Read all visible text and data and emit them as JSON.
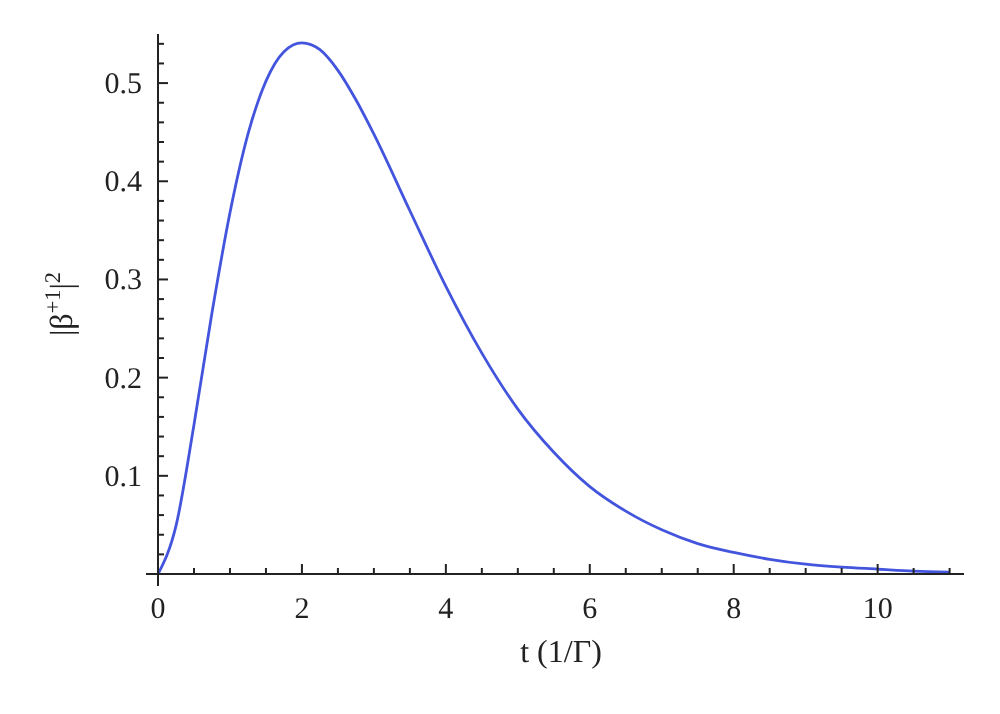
{
  "chart_data": {
    "type": "line",
    "xlabel": "t (1/Γ)",
    "ylabel": "|β$^{+1}$|$^{2}$",
    "x": [
      0,
      0.25,
      0.5,
      0.75,
      1,
      1.25,
      1.5,
      1.75,
      2,
      2.25,
      2.5,
      2.75,
      3,
      3.5,
      4,
      4.5,
      5,
      5.5,
      6,
      6.5,
      7,
      7.5,
      8,
      8.5,
      9,
      9.5,
      10,
      10.5,
      11
    ],
    "series": [
      {
        "color": "#4455dd",
        "values": [
          0,
          0.049,
          0.152,
          0.266,
          0.368,
          0.448,
          0.502,
          0.532,
          0.541,
          0.534,
          0.513,
          0.483,
          0.448,
          0.37,
          0.293,
          0.225,
          0.168,
          0.124,
          0.089,
          0.064,
          0.045,
          0.031,
          0.022,
          0.015,
          0.01,
          0.007,
          0.005,
          0.003,
          0.002
        ]
      }
    ],
    "xlim": [
      0,
      11.2
    ],
    "ylim": [
      0,
      0.55
    ],
    "xticks": [
      0,
      {
        "value": 0.5,
        "label": null
      },
      {
        "value": 1,
        "label": null
      },
      {
        "value": 1.5,
        "label": null
      },
      2,
      {
        "value": 2.5,
        "label": null
      },
      {
        "value": 3,
        "label": null
      },
      {
        "value": 3.5,
        "label": null
      },
      4,
      {
        "value": 4.5,
        "label": null
      },
      {
        "value": 5,
        "label": null
      },
      {
        "value": 5.5,
        "label": null
      },
      6,
      {
        "value": 6.5,
        "label": null
      },
      {
        "value": 7,
        "label": null
      },
      {
        "value": 7.5,
        "label": null
      },
      8,
      {
        "value": 8.5,
        "label": null
      },
      {
        "value": 9,
        "label": null
      },
      {
        "value": 9.5,
        "label": null
      },
      10,
      {
        "value": 10.5,
        "label": null
      },
      {
        "value": 11,
        "label": null
      }
    ],
    "yticks": [
      {
        "value": 0,
        "label": null
      },
      {
        "value": 0.02,
        "label": null
      },
      {
        "value": 0.04,
        "label": null
      },
      {
        "value": 0.06,
        "label": null
      },
      {
        "value": 0.08,
        "label": null
      },
      0.1,
      {
        "value": 0.12,
        "label": null
      },
      {
        "value": 0.14,
        "label": null
      },
      {
        "value": 0.16,
        "label": null
      },
      {
        "value": 0.18,
        "label": null
      },
      0.2,
      {
        "value": 0.22,
        "label": null
      },
      {
        "value": 0.24,
        "label": null
      },
      {
        "value": 0.26,
        "label": null
      },
      {
        "value": 0.28,
        "label": null
      },
      0.3,
      {
        "value": 0.32,
        "label": null
      },
      {
        "value": 0.34,
        "label": null
      },
      {
        "value": 0.36,
        "label": null
      },
      {
        "value": 0.38,
        "label": null
      },
      0.4,
      {
        "value": 0.42,
        "label": null
      },
      {
        "value": 0.44,
        "label": null
      },
      {
        "value": 0.46,
        "label": null
      },
      {
        "value": 0.48,
        "label": null
      },
      0.5,
      {
        "value": 0.52,
        "label": null
      },
      {
        "value": 0.54,
        "label": null
      }
    ],
    "grid": false,
    "marker": "none",
    "line_style": "solid"
  }
}
